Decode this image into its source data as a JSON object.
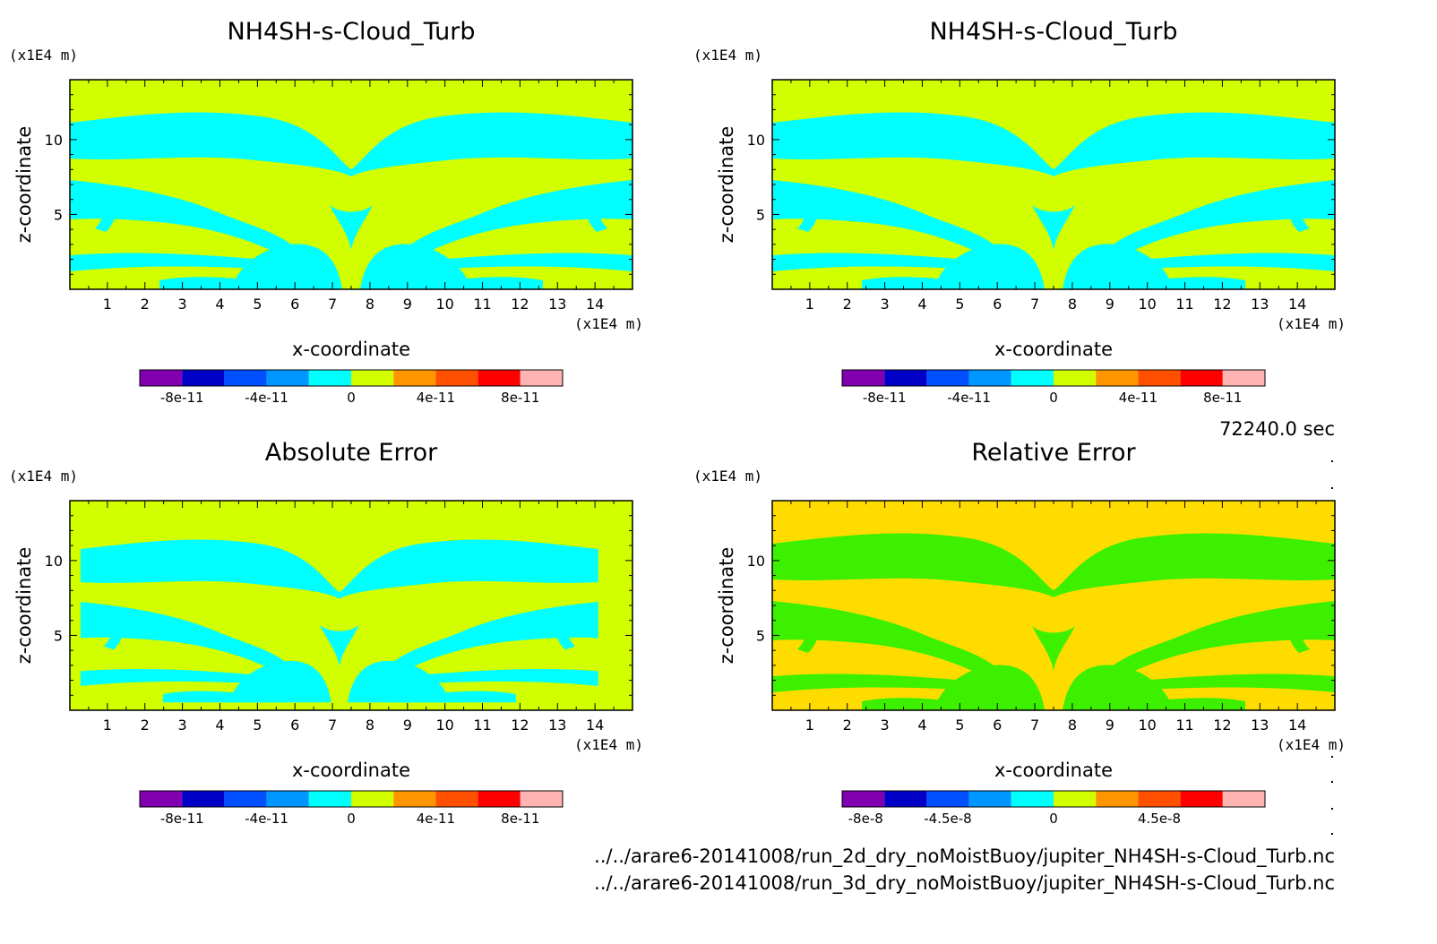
{
  "time_label": "72240.0 sec",
  "footer": {
    "file_1": "../../arare6-20141008/run_2d_dry_noMoistBuoy/jupiter_NH4SH-s-Cloud_Turb.nc",
    "file_2": "../../arare6-20141008/run_3d_dry_noMoistBuoy/jupiter_NH4SH-s-Cloud_Turb.nc"
  },
  "colors": {
    "levels_10": [
      "#8000b0",
      "#0000c8",
      "#0050ff",
      "#0096ff",
      "#00ffff",
      "#d2ff00",
      "#ff9600",
      "#ff5000",
      "#ff0000",
      "#ffb4b4"
    ],
    "relerr_fill": "#ffdc00",
    "relerr_band": "#3cf000"
  },
  "chart_data": [
    {
      "type": "heatmap",
      "title": "NH4SH-s-Cloud_Turb",
      "xlabel": "x-coordinate",
      "ylabel": "z-coordinate",
      "x_unit": "(x1E4 m)",
      "z_unit": "(x1E4 m)",
      "xlim": [
        0,
        15
      ],
      "zlim": [
        0,
        14
      ],
      "x_ticks": [
        "1",
        "2",
        "3",
        "4",
        "5",
        "6",
        "7",
        "8",
        "9",
        "10",
        "11",
        "12",
        "13",
        "14"
      ],
      "z_ticks": [
        "5",
        "10"
      ],
      "background_level": "0 to 2e-11",
      "band_level": "-2e-11 to 0",
      "colorbar": {
        "labels": [
          "-8e-11",
          "-4e-11",
          "0",
          "4e-11",
          "8e-11"
        ],
        "range": [
          -1e-10,
          1e-10
        ]
      }
    },
    {
      "type": "heatmap",
      "title": "NH4SH-s-Cloud_Turb",
      "xlabel": "x-coordinate",
      "ylabel": "z-coordinate",
      "x_unit": "(x1E4 m)",
      "z_unit": "(x1E4 m)",
      "xlim": [
        0,
        15
      ],
      "zlim": [
        0,
        14
      ],
      "x_ticks": [
        "1",
        "2",
        "3",
        "4",
        "5",
        "6",
        "7",
        "8",
        "9",
        "10",
        "11",
        "12",
        "13",
        "14"
      ],
      "z_ticks": [
        "5",
        "10"
      ],
      "background_level": "0 to 2e-11",
      "band_level": "-2e-11 to 0",
      "colorbar": {
        "labels": [
          "-8e-11",
          "-4e-11",
          "0",
          "4e-11",
          "8e-11"
        ],
        "range": [
          -1e-10,
          1e-10
        ]
      }
    },
    {
      "type": "heatmap",
      "title": "Absolute Error",
      "xlabel": "x-coordinate",
      "ylabel": "z-coordinate",
      "x_unit": "(x1E4 m)",
      "z_unit": "(x1E4 m)",
      "xlim": [
        0,
        15
      ],
      "zlim": [
        0,
        14
      ],
      "x_ticks": [
        "1",
        "2",
        "3",
        "4",
        "5",
        "6",
        "7",
        "8",
        "9",
        "10",
        "11",
        "12",
        "13",
        "14"
      ],
      "z_ticks": [
        "5",
        "10"
      ],
      "background_level": "0 to 2e-11",
      "band_level": "-2e-11 to 0",
      "colorbar": {
        "labels": [
          "-8e-11",
          "-4e-11",
          "0",
          "4e-11",
          "8e-11"
        ],
        "range": [
          -1e-10,
          1e-10
        ]
      }
    },
    {
      "type": "heatmap",
      "title": "Relative Error",
      "xlabel": "x-coordinate",
      "ylabel": "z-coordinate",
      "x_unit": "(x1E4 m)",
      "z_unit": "(x1E4 m)",
      "xlim": [
        0,
        15
      ],
      "zlim": [
        0,
        14
      ],
      "x_ticks": [
        "1",
        "2",
        "3",
        "4",
        "5",
        "6",
        "7",
        "8",
        "9",
        "10",
        "11",
        "12",
        "13",
        "14"
      ],
      "z_ticks": [
        "5",
        "10"
      ],
      "background_level": "0 to 1.5e-8",
      "band_level": "-1.5e-8 to 0",
      "colorbar": {
        "labels": [
          "-8e-8",
          "-4.5e-8",
          "0",
          "4.5e-8"
        ],
        "range": [
          -9e-08,
          9e-08
        ]
      }
    }
  ]
}
